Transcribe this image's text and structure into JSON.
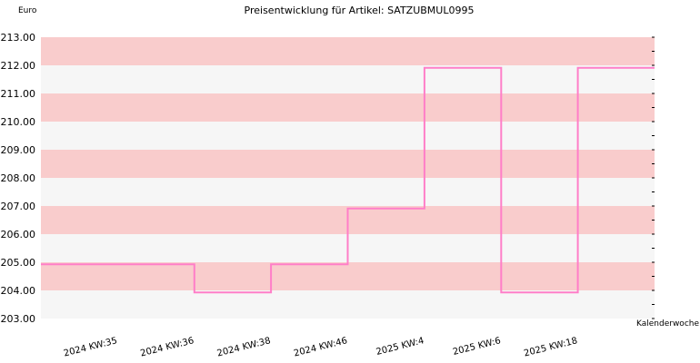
{
  "chart_data": {
    "type": "line",
    "step": true,
    "title": "Preisentwicklung für Artikel: SATZUBMUL0995",
    "ylabel": "Euro",
    "xlabel": "Kalenderwoche",
    "ylim": [
      203.0,
      213.0
    ],
    "ytick_step": 1.0,
    "grid": true,
    "band_colors": [
      "#f9cccc",
      "#f6f6f6"
    ],
    "line_color": "#ff7ec8",
    "categories": [
      "2024 KW:35",
      "2024 KW:36",
      "2024 KW:38",
      "2024 KW:46",
      "2025 KW:4",
      "2025 KW:6",
      "2025 KW:18"
    ],
    "series": [
      {
        "values": [
          204.93,
          203.93,
          204.93,
          206.91,
          211.91,
          203.93,
          211.91
        ]
      }
    ]
  }
}
